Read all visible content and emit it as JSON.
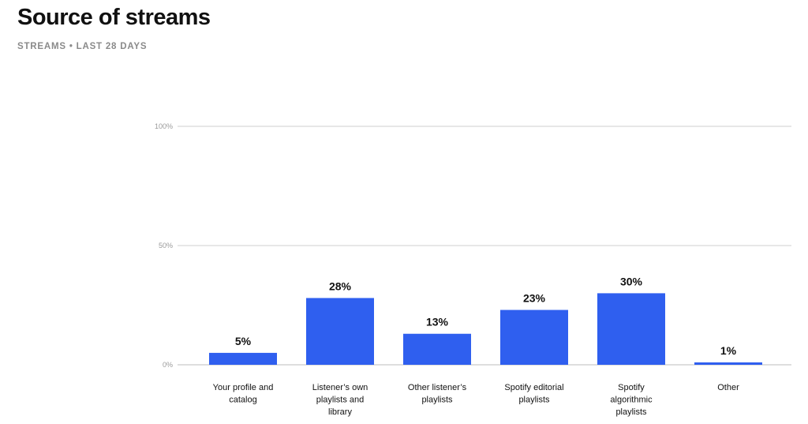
{
  "header": {
    "title": "Source of streams",
    "subtitle": "STREAMS • LAST 28 DAYS"
  },
  "colors": {
    "bar": "#2f5fef",
    "gridline": "#cfcfcf",
    "baseline": "#bdbdbd"
  },
  "chart_data": {
    "type": "bar",
    "categories": [
      [
        "Your profile and",
        "catalog"
      ],
      [
        "Listener’s own",
        "playlists and",
        "library"
      ],
      [
        "Other listener’s",
        "playlists"
      ],
      [
        "Spotify editorial",
        "playlists"
      ],
      [
        "Spotify",
        "algorithmic",
        "playlists"
      ],
      [
        "Other"
      ]
    ],
    "values": [
      5,
      28,
      13,
      23,
      30,
      1
    ],
    "value_labels": [
      "5%",
      "28%",
      "13%",
      "23%",
      "30%",
      "1%"
    ],
    "yticks": [
      0,
      50,
      100
    ],
    "ytick_labels": [
      "0%",
      "50%",
      "100%"
    ],
    "ylim": [
      0,
      100
    ],
    "grid": true
  }
}
